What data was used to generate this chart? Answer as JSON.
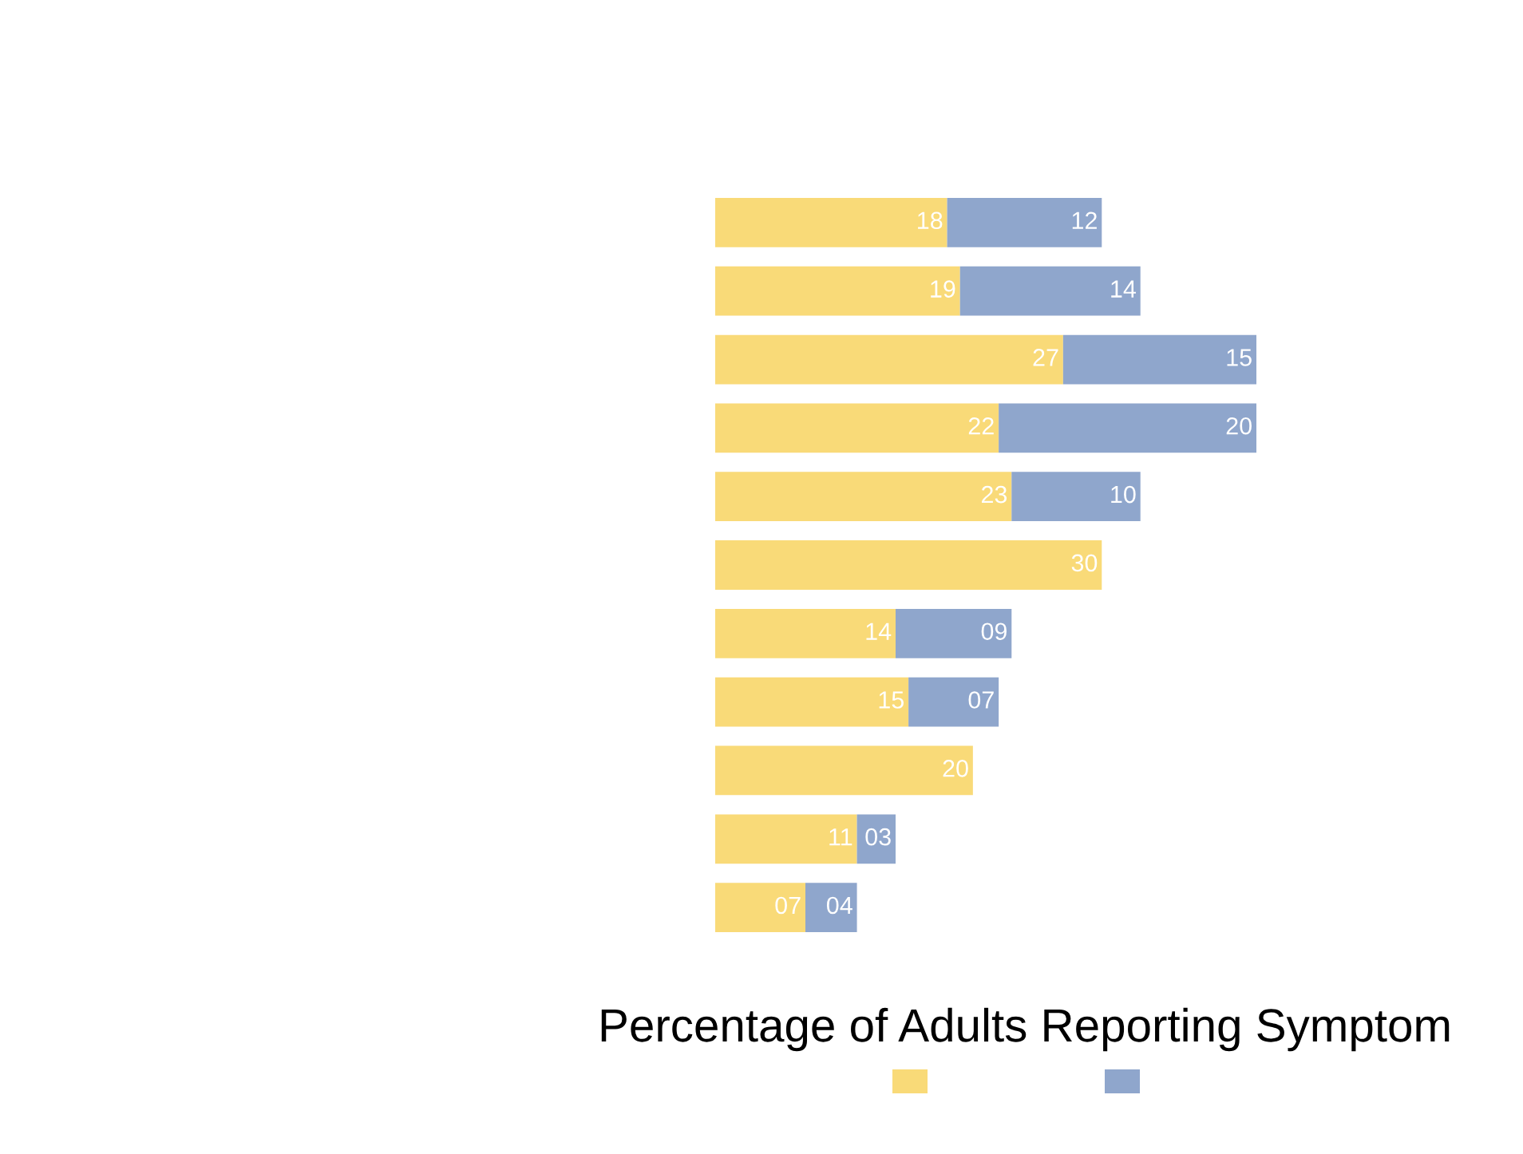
{
  "chart_data": {
    "type": "bar",
    "orientation": "horizontal",
    "stacked": true,
    "title": "Percentage of Adults Reporting Symptom",
    "categories": [
      null,
      null,
      null,
      null,
      null,
      null,
      null,
      null,
      null,
      null,
      null
    ],
    "series": [
      {
        "color": "#f9da78",
        "values": [
          18,
          19,
          27,
          22,
          23,
          30,
          14,
          15,
          20,
          11,
          7
        ],
        "value_labels": [
          "18",
          "19",
          "27",
          "22",
          "23",
          "30",
          "14",
          "15",
          "20",
          "11",
          "07"
        ]
      },
      {
        "color": "#8fa6cc",
        "values": [
          12,
          14,
          15,
          20,
          10,
          0,
          9,
          7,
          0,
          3,
          4
        ],
        "value_labels": [
          "12",
          "14",
          "15",
          "20",
          "10",
          null,
          "09",
          "07",
          null,
          "03",
          "04"
        ]
      }
    ],
    "grid": false,
    "tick_labels": false
  }
}
